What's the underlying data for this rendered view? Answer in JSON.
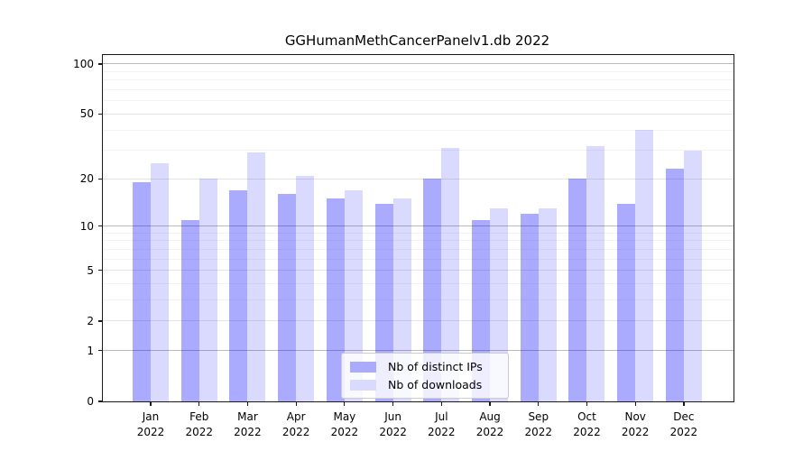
{
  "title": "GGHumanMethCancerPanelv1.db 2022",
  "chart_data": {
    "type": "bar",
    "title": "GGHumanMethCancerPanelv1.db 2022",
    "xlabel": "",
    "ylabel": "",
    "scale": "log10(1+y)",
    "categories": [
      "Jan",
      "Feb",
      "Mar",
      "Apr",
      "May",
      "Jun",
      "Jul",
      "Aug",
      "Sep",
      "Oct",
      "Nov",
      "Dec"
    ],
    "category_year": "2022",
    "series": [
      {
        "name": "Nb of distinct IPs",
        "color": "rgba(0,0,255,0.335)",
        "legend_color": "#aaaaff",
        "values": [
          19,
          11,
          17,
          16,
          15,
          14,
          20,
          11,
          12,
          20,
          14,
          23
        ]
      },
      {
        "name": "Nb of downloads",
        "color": "rgba(0,0,255,0.145)",
        "legend_color": "#dadaff",
        "values": [
          25,
          20,
          29,
          21,
          17,
          15,
          31,
          13,
          13,
          32,
          40,
          30
        ]
      }
    ],
    "y_major_ticks": [
      100,
      50,
      20,
      10,
      5,
      2,
      1,
      0
    ],
    "y_minor_ticks": [
      3,
      4,
      6,
      7,
      8,
      9,
      30,
      40,
      60,
      70,
      80,
      90
    ],
    "ylim": [
      0,
      113
    ],
    "grid": "on",
    "legend_position": "lower center"
  },
  "colors": {
    "grid_decade": "#bbbbbb",
    "grid_major": "#e4e4e4",
    "grid_minor": "#f3f3f3",
    "axis": "#1a1a1a",
    "background": "#ffffff"
  }
}
